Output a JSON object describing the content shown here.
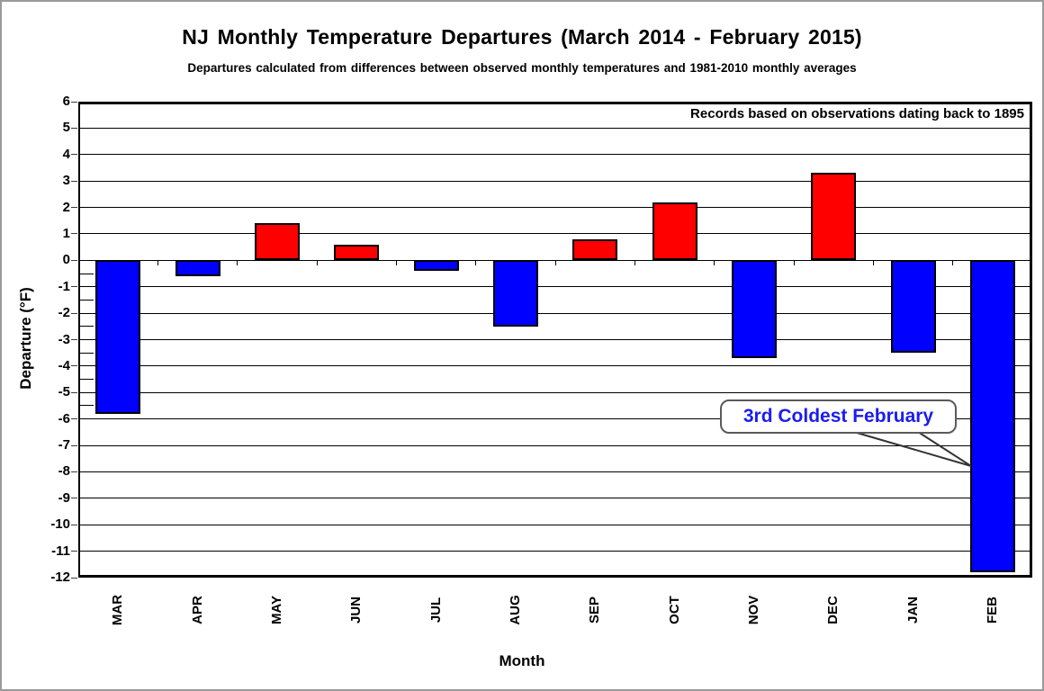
{
  "page": {
    "title": "NJ Monthly Temperature Departures (March 2014 - February 2015)",
    "subtitle": "Departures calculated from differences between observed monthly temperatures and 1981-2010 monthly averages",
    "note": "Records based on observations dating back to 1895"
  },
  "chart_data": {
    "type": "bar",
    "categories": [
      "MAR",
      "APR",
      "MAY",
      "JUN",
      "JUL",
      "AUG",
      "SEP",
      "OCT",
      "NOV",
      "DEC",
      "JAN",
      "FEB"
    ],
    "values": [
      -5.8,
      -0.6,
      1.4,
      0.6,
      -0.4,
      -2.5,
      0.8,
      2.2,
      -3.7,
      3.3,
      -3.5,
      -11.8
    ],
    "title": "NJ Monthly Temperature Departures (March 2014 - February 2015)",
    "subtitle": "Departures calculated from differences between observed monthly temperatures and 1981-2010 monthly averages",
    "xlabel": "Month",
    "ylabel": "Departure (°F)",
    "ylim": [
      -12,
      6
    ],
    "ytick_step": 1,
    "minor_tick_step": 0.5,
    "minor_tick_range": [
      -5.5,
      -0.5
    ],
    "grid": true,
    "legend_position": "none",
    "positive_color": "#fe0000",
    "negative_color": "#0000fe",
    "bar_outline_color": "#000000",
    "annotation": {
      "text": "3rd Coldest February",
      "target_category": "FEB",
      "text_color": "#1c1cf0"
    },
    "note": "Records based on observations dating back to 1895"
  }
}
